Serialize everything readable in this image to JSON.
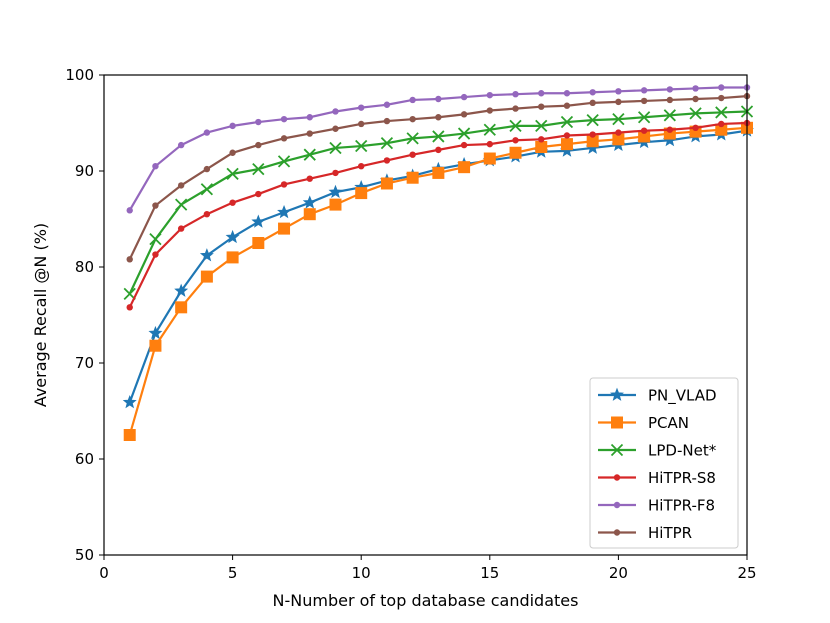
{
  "chart_data": {
    "type": "line",
    "title": "",
    "xlabel": "N-Number of top database candidates",
    "ylabel": "Average Recall @N (%)",
    "xlim": [
      0,
      25
    ],
    "ylim": [
      50,
      100
    ],
    "xticks": [
      0,
      5,
      10,
      15,
      20,
      25
    ],
    "yticks": [
      50,
      60,
      70,
      80,
      90,
      100
    ],
    "grid": false,
    "legend_position": "lower-right",
    "x": [
      1,
      2,
      3,
      4,
      5,
      6,
      7,
      8,
      9,
      10,
      11,
      12,
      13,
      14,
      15,
      16,
      17,
      18,
      19,
      20,
      21,
      22,
      23,
      24,
      25
    ],
    "series": [
      {
        "name": "PN_VLAD",
        "color": "#1f77b4",
        "marker": "star",
        "values": [
          65.9,
          73.1,
          77.5,
          81.2,
          83.1,
          84.7,
          85.7,
          86.7,
          87.8,
          88.3,
          89.0,
          89.5,
          90.2,
          90.7,
          91.1,
          91.5,
          92.0,
          92.1,
          92.4,
          92.7,
          93.0,
          93.2,
          93.6,
          93.8,
          94.2
        ]
      },
      {
        "name": "PCAN",
        "color": "#ff7f0e",
        "marker": "square",
        "values": [
          62.5,
          71.8,
          75.8,
          79.0,
          81.0,
          82.5,
          84.0,
          85.5,
          86.5,
          87.7,
          88.7,
          89.3,
          89.8,
          90.4,
          91.3,
          91.9,
          92.5,
          92.8,
          93.1,
          93.3,
          93.6,
          93.9,
          94.1,
          94.3,
          94.5
        ]
      },
      {
        "name": "LPD-Net*",
        "color": "#2ca02c",
        "marker": "x",
        "values": [
          77.2,
          82.9,
          86.5,
          88.1,
          89.7,
          90.2,
          91.0,
          91.7,
          92.4,
          92.6,
          92.9,
          93.4,
          93.6,
          93.9,
          94.3,
          94.7,
          94.7,
          95.1,
          95.3,
          95.4,
          95.6,
          95.8,
          96.0,
          96.1,
          96.2
        ]
      },
      {
        "name": "HiTPR-S8",
        "color": "#d62728",
        "marker": "dot",
        "values": [
          75.8,
          81.3,
          84.0,
          85.5,
          86.7,
          87.6,
          88.6,
          89.2,
          89.8,
          90.5,
          91.1,
          91.7,
          92.2,
          92.7,
          92.8,
          93.2,
          93.3,
          93.7,
          93.8,
          94.0,
          94.2,
          94.3,
          94.5,
          94.9,
          95.0
        ]
      },
      {
        "name": "HiTPR-F8",
        "color": "#9467bd",
        "marker": "dot",
        "values": [
          85.9,
          90.5,
          92.7,
          94.0,
          94.7,
          95.1,
          95.4,
          95.6,
          96.2,
          96.6,
          96.9,
          97.4,
          97.5,
          97.7,
          97.9,
          98.0,
          98.1,
          98.1,
          98.2,
          98.3,
          98.4,
          98.5,
          98.6,
          98.7,
          98.7
        ]
      },
      {
        "name": "HiTPR",
        "color": "#8c564b",
        "marker": "dot",
        "values": [
          80.8,
          86.4,
          88.5,
          90.2,
          91.9,
          92.7,
          93.4,
          93.9,
          94.4,
          94.9,
          95.2,
          95.4,
          95.6,
          95.9,
          96.3,
          96.5,
          96.7,
          96.8,
          97.1,
          97.2,
          97.3,
          97.4,
          97.5,
          97.6,
          97.8
        ]
      }
    ]
  }
}
